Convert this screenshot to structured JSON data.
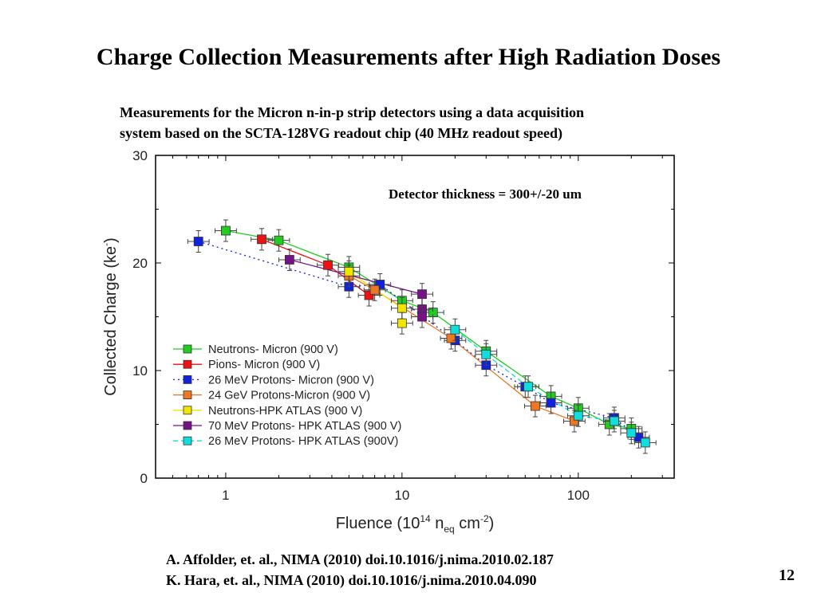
{
  "slide": {
    "title": "Charge Collection Measurements after High Radiation Doses",
    "subtitle_line1": "Measurements for the Micron n-in-p strip detectors using a data acquisition",
    "subtitle_line2": "system based on the SCTA-128VG readout chip (40 MHz readout speed)",
    "references": [
      "A. Affolder, et. al., NIMA (2010) doi.10.1016/j.nima.2010.02.187",
      "K. Hara, et. al., NIMA (2010) doi.10.1016/j.nima.2010.04.090"
    ],
    "page_number": "12"
  },
  "chart_data": {
    "type": "scatter",
    "xscale": "log",
    "xlim": [
      0.4,
      350
    ],
    "ylim": [
      0,
      30
    ],
    "xticks": [
      1,
      10,
      100
    ],
    "xticklabels": [
      "1",
      "10",
      "100"
    ],
    "yticks": [
      0,
      10,
      20,
      30
    ],
    "yticklabels": [
      "0",
      "10",
      "20",
      "30"
    ],
    "xlabel": "Fluence (10",
    "xlabel_sup": "14",
    "xlabel_mid": " n",
    "xlabel_sub": "eq",
    "xlabel_end": " cm",
    "xlabel_sup2": "-2",
    "xlabel_close": ")",
    "ylabel": "Collected Charge (ke",
    "ylabel_sup": "-",
    "ylabel_close": ")",
    "annotation": "Detector thickness = 300+/-20 um",
    "legend_position": "bottom-left",
    "series": [
      {
        "name": "Neutrons- Micron (900 V)",
        "color": "#22cc22",
        "line": "solid",
        "x": [
          1.0,
          2.0,
          5.0,
          10.0,
          15.0,
          30.0,
          70.0,
          100.0,
          150.0,
          200.0
        ],
        "y": [
          23.0,
          22.1,
          19.6,
          16.5,
          15.4,
          11.8,
          7.6,
          6.5,
          5.0,
          4.6
        ]
      },
      {
        "name": "Pions- Micron (900 V)",
        "color": "#ee1111",
        "line": "solid",
        "x": [
          1.6,
          3.8,
          6.5
        ],
        "y": [
          22.2,
          19.8,
          17.0
        ]
      },
      {
        "name": "26 MeV Protons- Micron (900 V)",
        "color": "#1122dd",
        "line": "dotted",
        "x": [
          0.7,
          5.0,
          7.5,
          20.0,
          30.0,
          50.0,
          70.0,
          160.0,
          220.0
        ],
        "y": [
          22.0,
          17.8,
          18.0,
          12.8,
          10.5,
          8.5,
          7.0,
          5.6,
          3.8
        ]
      },
      {
        "name": "24 GeV Protons-Micron (900 V)",
        "color": "#ee7722",
        "line": "solid",
        "x": [
          5.0,
          7.0,
          19.0,
          57.0,
          95.0
        ],
        "y": [
          18.8,
          17.5,
          13.0,
          6.7,
          5.3
        ]
      },
      {
        "name": "Neutrons-HPK ATLAS (900 V)",
        "color": "#f2e600",
        "line": "solid",
        "x": [
          5.0,
          10.0,
          10.0
        ],
        "y": [
          19.2,
          15.8,
          14.4
        ]
      },
      {
        "name": "70 MeV Protons- HPK ATLAS (900 V)",
        "color": "#771188",
        "line": "solid",
        "x": [
          2.3,
          13.0,
          13.0,
          13.0
        ],
        "y": [
          20.3,
          17.1,
          15.7,
          15.0
        ]
      },
      {
        "name": "26 MeV Protons- HPK ATLAS (900V)",
        "color": "#11dddd",
        "line": "dashed",
        "x": [
          20.0,
          30.0,
          52.0,
          100.0,
          160.0,
          200.0,
          240.0
        ],
        "y": [
          13.8,
          11.5,
          8.5,
          5.8,
          5.3,
          4.2,
          3.3
        ]
      }
    ]
  }
}
